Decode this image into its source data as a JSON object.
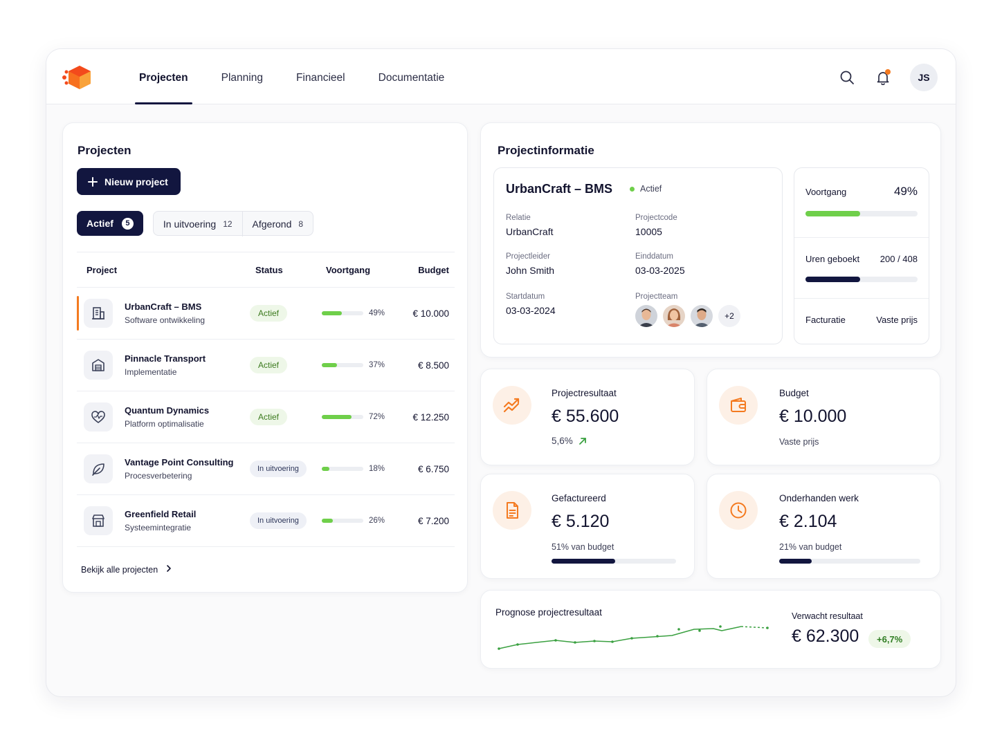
{
  "nav": {
    "tabs": [
      {
        "label": "Projecten",
        "active": true
      },
      {
        "label": "Planning",
        "active": false
      },
      {
        "label": "Financieel",
        "active": false
      },
      {
        "label": "Documentatie",
        "active": false
      }
    ],
    "user_initials": "JS",
    "icons": [
      "search-icon",
      "bell-icon"
    ],
    "has_notification": true
  },
  "projects": {
    "title": "Projecten",
    "new_button": "Nieuw project",
    "filters": [
      {
        "label": "Actief",
        "count": "5",
        "active": true
      },
      {
        "label": "In uitvoering",
        "count": "12",
        "active": false
      },
      {
        "label": "Afgerond",
        "count": "8",
        "active": false
      }
    ],
    "columns": [
      "Project",
      "Status",
      "Voortgang",
      "Budget"
    ],
    "rows": [
      {
        "name": "UrbanCraft – BMS",
        "sub": "Software ontwikkeling",
        "status": "Actief",
        "progress": 49,
        "progress_label": "49%",
        "budget": "€ 10.000",
        "icon": "building-icon",
        "selected": true
      },
      {
        "name": "Pinnacle Transport",
        "sub": "Implementatie",
        "status": "Actief",
        "progress": 37,
        "progress_label": "37%",
        "budget": "€ 8.500",
        "icon": "warehouse-icon",
        "selected": false
      },
      {
        "name": "Quantum Dynamics",
        "sub": "Platform optimalisatie",
        "status": "Actief",
        "progress": 72,
        "progress_label": "72%",
        "budget": "€ 12.250",
        "icon": "heart-pulse-icon",
        "selected": false
      },
      {
        "name": "Vantage Point Consulting",
        "sub": "Procesverbetering",
        "status": "In uitvoering",
        "progress": 18,
        "progress_label": "18%",
        "budget": "€ 6.750",
        "icon": "leaf-icon",
        "selected": false
      },
      {
        "name": "Greenfield Retail",
        "sub": "Systeemintegratie",
        "status": "In uitvoering",
        "progress": 26,
        "progress_label": "26%",
        "budget": "€ 7.200",
        "icon": "store-icon",
        "selected": false
      }
    ],
    "see_all": "Bekijk alle projecten"
  },
  "info": {
    "title": "Projectinformatie",
    "project_name": "UrbanCraft – BMS",
    "status": "Actief",
    "fields": {
      "relatie_label": "Relatie",
      "relatie": "UrbanCraft",
      "projectcode_label": "Projectcode",
      "projectcode": "10005",
      "projectleider_label": "Projectleider",
      "projectleider": "John Smith",
      "einddatum_label": "Einddatum",
      "einddatum": "03-03-2025",
      "startdatum_label": "Startdatum",
      "startdatum": "03-03-2024",
      "team_label": "Projectteam",
      "team_more": "+2"
    },
    "voortgang_label": "Voortgang",
    "voortgang_value": "49%",
    "voortgang_pct": 49,
    "uren_label": "Uren geboekt",
    "uren_value": "200 / 408",
    "uren_fraction": 0.49,
    "facturatie_label": "Facturatie",
    "facturatie_value": "Vaste prijs"
  },
  "kpis": {
    "projectresultaat": {
      "title": "Projectresultaat",
      "value": "€ 55.600",
      "sub": "5,6%",
      "icon": "trend-up-icon"
    },
    "budget": {
      "title": "Budget",
      "value": "€ 10.000",
      "sub": "Vaste prijs",
      "icon": "wallet-icon"
    },
    "gefactureerd": {
      "title": "Gefactureerd",
      "value": "€ 5.120",
      "sub": "51% van budget",
      "progress": 51,
      "icon": "document-icon"
    },
    "onderhanden": {
      "title": "Onderhanden werk",
      "value": "€ 2.104",
      "sub": "21% van budget",
      "progress": 21,
      "icon": "clock-icon"
    }
  },
  "forecast": {
    "title": "Prognose projectresultaat",
    "expected_label": "Verwacht resultaat",
    "expected_value": "€ 62.300",
    "delta": "+6,7%"
  },
  "colors": {
    "accent": "#f47a20",
    "navy": "#12163f",
    "green": "#6fcf4a"
  }
}
